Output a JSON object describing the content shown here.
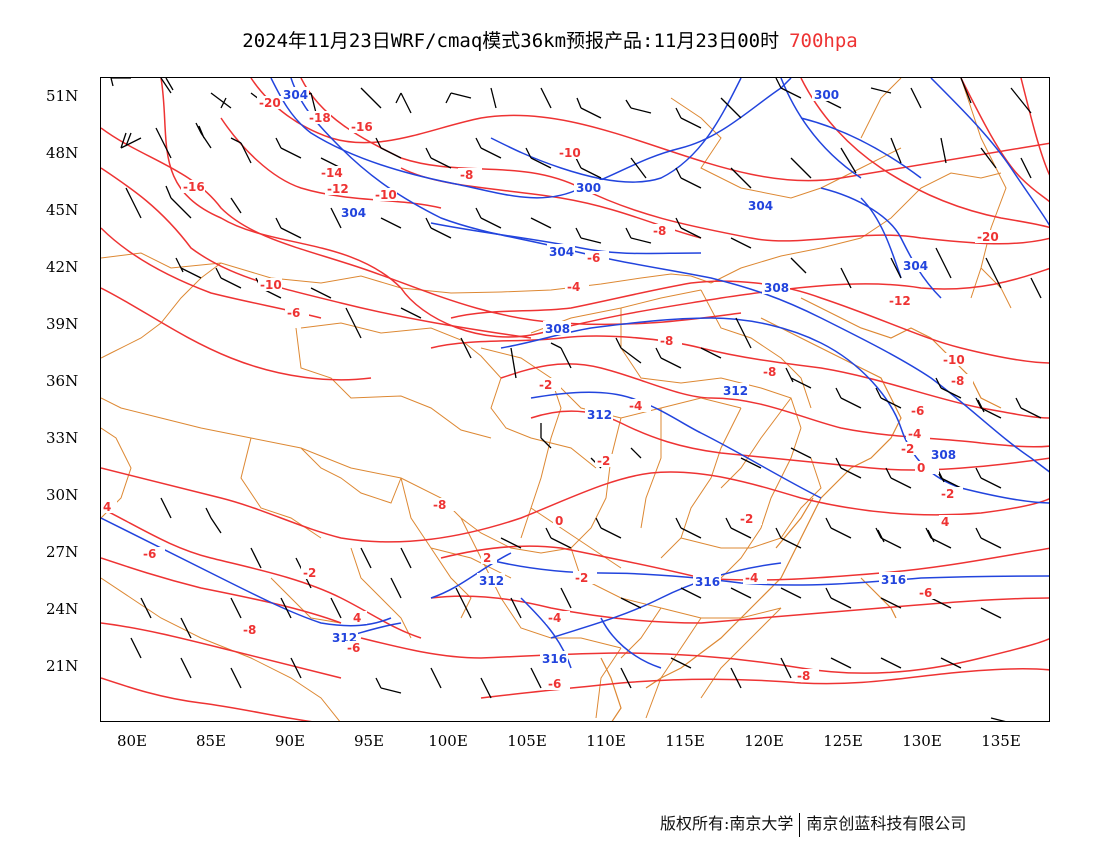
{
  "title": {
    "main": "2024年11月23日WRF/cmaq模式36km预报产品:11月23日00时",
    "level": "700hpa"
  },
  "colors": {
    "temperature": "#ee3333",
    "height": "#2244dd",
    "wind": "#000000",
    "boundary": "#dd8833",
    "level_text": "#ee3333"
  },
  "axes": {
    "lat_labels": [
      "51N",
      "48N",
      "45N",
      "42N",
      "39N",
      "36N",
      "33N",
      "30N",
      "27N",
      "24N",
      "21N"
    ],
    "lon_labels": [
      "80E",
      "85E",
      "90E",
      "95E",
      "100E",
      "105E",
      "110E",
      "115E",
      "120E",
      "125E",
      "130E",
      "135E"
    ],
    "lon_range": [
      78,
      138
    ],
    "lat_range": [
      17.5,
      51.5
    ]
  },
  "height_labels": [
    "304",
    "304",
    "300",
    "304",
    "304",
    "300",
    "308",
    "308",
    "312",
    "312",
    "312",
    "316",
    "316",
    "316",
    "312",
    "308",
    "304"
  ],
  "temp_labels": [
    "-20",
    "-18",
    "-16",
    "-16",
    "-14",
    "-12",
    "-10",
    "-10",
    "-8",
    "-8",
    "-6",
    "-6",
    "-4",
    "-10",
    "-8",
    "-20",
    "-12",
    "-10",
    "-8",
    "-8",
    "-6",
    "-4",
    "-4",
    "-2",
    "-2",
    "-2",
    "0",
    "0",
    "-2",
    "-2",
    "4",
    "4",
    "-6",
    "-2",
    "-2",
    "2",
    "-4",
    "-4",
    "4",
    "-8",
    "-6",
    "-6",
    "-6",
    "-8",
    "-8"
  ],
  "credit": {
    "left": "版权所有:南京大学",
    "right": "南京创蓝科技有限公司"
  }
}
